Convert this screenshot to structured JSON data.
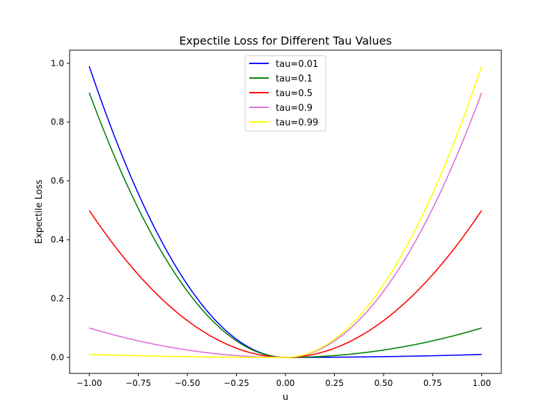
{
  "chart_data": {
    "type": "line",
    "title": "Expectile Loss for Different Tau Values",
    "xlabel": "u",
    "ylabel": "Expectile Loss",
    "xlim": [
      -1.1,
      1.1
    ],
    "ylim": [
      -0.0545,
      1.0445
    ],
    "xticks": [
      -1.0,
      -0.75,
      -0.5,
      -0.25,
      0.0,
      0.25,
      0.5,
      0.75,
      1.0
    ],
    "xtick_labels": [
      "−1.00",
      "−0.75",
      "−0.50",
      "−0.25",
      "0.00",
      "0.25",
      "0.50",
      "0.75",
      "1.00"
    ],
    "yticks": [
      0.0,
      0.2,
      0.4,
      0.6,
      0.8,
      1.0
    ],
    "ytick_labels": [
      "0.0",
      "0.2",
      "0.4",
      "0.6",
      "0.8",
      "1.0"
    ],
    "grid": false,
    "legend_position": "top-center",
    "formula": "loss(u) = |tau - 1(u < 0)| * u^2",
    "x_range": [
      -1.0,
      1.0
    ],
    "series": [
      {
        "name": "tau=0.01",
        "tau": 0.01,
        "color": "#0000ff"
      },
      {
        "name": "tau=0.1",
        "tau": 0.1,
        "color": "#008000"
      },
      {
        "name": "tau=0.5",
        "tau": 0.5,
        "color": "#ff0000"
      },
      {
        "name": "tau=0.9",
        "tau": 0.9,
        "color": "#da70d6"
      },
      {
        "name": "tau=0.99",
        "tau": 0.99,
        "color": "#ffff00"
      }
    ]
  }
}
